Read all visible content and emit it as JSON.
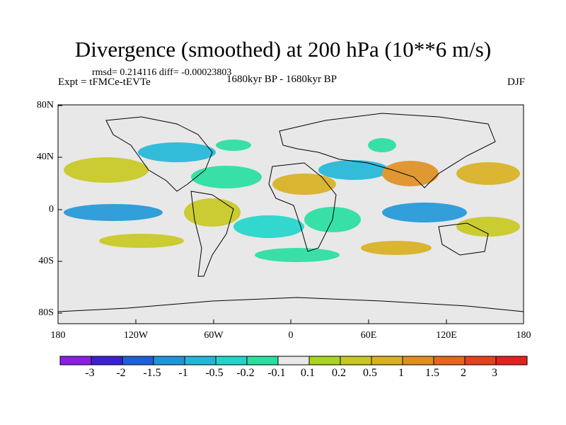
{
  "title": "Divergence (smoothed) at 200 hPa (10**6 m/s)",
  "stats": "rmsd= 0.214116 diff= -0.00023803",
  "expt": "Expt = tFMCe-tEVTe",
  "period": "1680kyr BP - 1680kyr BP",
  "season": "DJF",
  "y_ticks": [
    "80N",
    "40N",
    "0",
    "40S",
    "80S"
  ],
  "x_ticks": [
    "180",
    "120W",
    "60W",
    "0",
    "60E",
    "120E",
    "180"
  ],
  "colorbar": {
    "labels": [
      "-3",
      "-2",
      "-1.5",
      "-1",
      "-0.5",
      "-0.2",
      "-0.1",
      "0.1",
      "0.2",
      "0.5",
      "1",
      "1.5",
      "2",
      "3"
    ],
    "colors": [
      "#8c1fe6",
      "#3d1fd6",
      "#1f5fd9",
      "#1f96d9",
      "#1fb8d9",
      "#1fd6cc",
      "#26e0a0",
      "#e8e8e8",
      "#a8d61f",
      "#c8c81f",
      "#d9b01f",
      "#e0901f",
      "#e6661f",
      "#e6401f",
      "#e6201f"
    ]
  }
}
